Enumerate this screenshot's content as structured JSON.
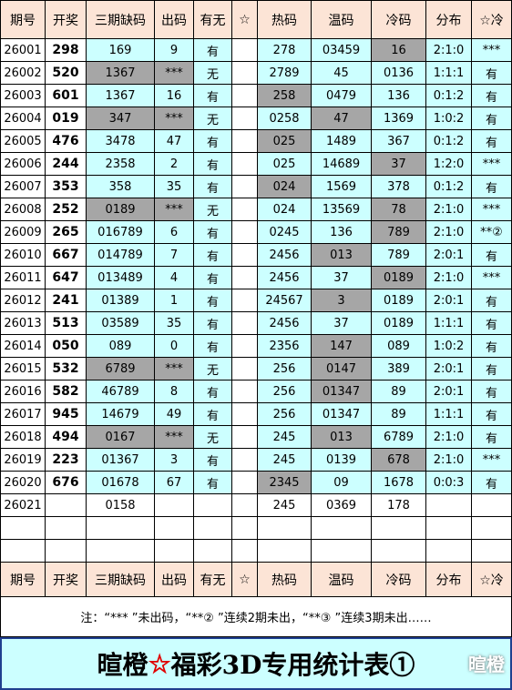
{
  "header": {
    "columns": [
      "期号",
      "开奖",
      "三期缺码",
      "出码",
      "有无",
      "☆",
      "热码",
      "温码",
      "冷码",
      "分布",
      "☆冷"
    ]
  },
  "rows": [
    {
      "cells": [
        "26001",
        "298",
        "169",
        "9",
        "有",
        null,
        "278",
        "03459",
        "16",
        "2:1:0",
        "***"
      ],
      "shaded": [
        8
      ],
      "color": "#ccffff"
    },
    {
      "cells": [
        "26002",
        "520",
        "1367",
        "***",
        "无",
        null,
        "2789",
        "45",
        "0136",
        "1:1:1",
        "有"
      ],
      "shaded": [
        2,
        3
      ],
      "color": "#ccffff"
    },
    {
      "cells": [
        "26003",
        "601",
        "1367",
        "16",
        "有",
        null,
        "258",
        "0479",
        "136",
        "0:1:2",
        "有"
      ],
      "shaded": [
        6
      ],
      "color": "#ccffff"
    },
    {
      "cells": [
        "26004",
        "019",
        "347",
        "***",
        "无",
        null,
        "0258",
        "47",
        "1369",
        "1:0:2",
        "有"
      ],
      "shaded": [
        2,
        3,
        7
      ],
      "color": "#ccffff"
    },
    {
      "cells": [
        "26005",
        "476",
        "3478",
        "47",
        "有",
        null,
        "025",
        "1489",
        "367",
        "0:1:2",
        "有"
      ],
      "shaded": [
        6
      ],
      "color": "#ccffff"
    },
    {
      "cells": [
        "26006",
        "244",
        "2358",
        "2",
        "有",
        null,
        "025",
        "14689",
        "37",
        "1:2:0",
        "***"
      ],
      "shaded": [
        8
      ],
      "color": "#ccffff"
    },
    {
      "cells": [
        "26007",
        "353",
        "358",
        "35",
        "有",
        null,
        "024",
        "1569",
        "378",
        "0:1:2",
        "有"
      ],
      "shaded": [
        6
      ],
      "color": "#ccffff"
    },
    {
      "cells": [
        "26008",
        "252",
        "0189",
        "***",
        "无",
        null,
        "024",
        "13569",
        "78",
        "2:1:0",
        "***"
      ],
      "shaded": [
        2,
        3,
        8
      ],
      "color": "#ccffff"
    },
    {
      "cells": [
        "26009",
        "265",
        "016789",
        "6",
        "有",
        null,
        "0245",
        "136",
        "789",
        "2:1:0",
        "**②"
      ],
      "shaded": [
        8
      ],
      "color": "#ccffff"
    },
    {
      "cells": [
        "26010",
        "667",
        "014789",
        "7",
        "有",
        null,
        "2456",
        "013",
        "789",
        "2:0:1",
        "有"
      ],
      "shaded": [
        7
      ],
      "color": "#ccffff"
    },
    {
      "cells": [
        "26011",
        "647",
        "013489",
        "4",
        "有",
        null,
        "2456",
        "37",
        "0189",
        "2:1:0",
        "***"
      ],
      "shaded": [
        8
      ],
      "color": "#ccffff"
    },
    {
      "cells": [
        "26012",
        "241",
        "01389",
        "1",
        "有",
        null,
        "24567",
        "3",
        "0189",
        "2:0:1",
        "有"
      ],
      "shaded": [
        7
      ],
      "color": "#ccffff"
    },
    {
      "cells": [
        "26013",
        "513",
        "03589",
        "35",
        "有",
        null,
        "2456",
        "37",
        "0189",
        "1:1:1",
        "有"
      ],
      "shaded": [],
      "color": "#ccffff"
    },
    {
      "cells": [
        "26014",
        "050",
        "089",
        "0",
        "有",
        null,
        "2356",
        "147",
        "089",
        "1:0:2",
        "有"
      ],
      "shaded": [
        7
      ],
      "color": "#ccffff"
    },
    {
      "cells": [
        "26015",
        "532",
        "6789",
        "***",
        "无",
        null,
        "256",
        "0147",
        "389",
        "2:0:1",
        "有"
      ],
      "shaded": [
        2,
        3,
        7
      ],
      "color": "#ccffff"
    },
    {
      "cells": [
        "26016",
        "582",
        "46789",
        "8",
        "有",
        null,
        "256",
        "01347",
        "89",
        "2:0:1",
        "有"
      ],
      "shaded": [
        7
      ],
      "color": "#ccffff"
    },
    {
      "cells": [
        "26017",
        "945",
        "14679",
        "49",
        "有",
        null,
        "256",
        "01347",
        "89",
        "1:1:1",
        "有"
      ],
      "shaded": [],
      "color": "#ccffff"
    },
    {
      "cells": [
        "26018",
        "494",
        "0167",
        "***",
        "无",
        null,
        "245",
        "013",
        "6789",
        "2:1:0",
        "有"
      ],
      "shaded": [
        2,
        3,
        7
      ],
      "color": "#ccffff"
    },
    {
      "cells": [
        "26019",
        "223",
        "01367",
        "3",
        "有",
        null,
        "245",
        "0139",
        "678",
        "2:1:0",
        "***"
      ],
      "shaded": [
        8
      ],
      "color": "#ccffff"
    },
    {
      "cells": [
        "26020",
        "676",
        "01678",
        "67",
        "有",
        null,
        "2345",
        "09",
        "1678",
        "0:0:3",
        "有"
      ],
      "shaded": [
        6
      ],
      "color": "#ccffff"
    },
    {
      "cells": [
        "26021",
        null,
        "0158",
        null,
        null,
        null,
        "245",
        "0369",
        "178",
        null,
        null
      ],
      "shaded": [],
      "color": "#ffffff"
    }
  ],
  "shade_color": "#a6a6a6",
  "header_color": "#fce4d6",
  "note": "注：“*** ”未出码，“**② ”连续2期未出，“**③ ”连续3期未出……",
  "title": {
    "left": "暄橙",
    "star": "☆",
    "right": "福彩3D专用统计表①"
  },
  "watermark": "暄橙"
}
